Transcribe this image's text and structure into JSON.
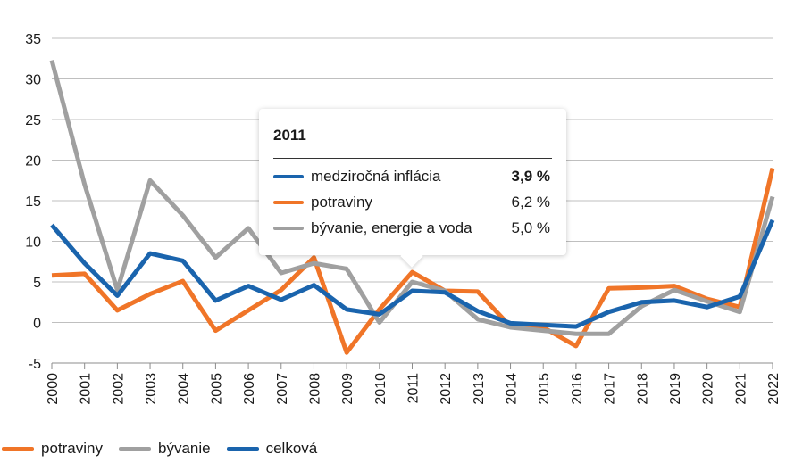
{
  "chart_data": {
    "type": "line",
    "title": "",
    "xlabel": "",
    "ylabel": "",
    "ylim": [
      -5,
      35
    ],
    "yticks": [
      -5,
      0,
      5,
      10,
      15,
      20,
      25,
      30,
      35
    ],
    "grid": true,
    "legend_placement": "bottom-left",
    "categories": [
      "2000",
      "2001",
      "2002",
      "2003",
      "2004",
      "2005",
      "2006",
      "2007",
      "2008",
      "2009",
      "2010",
      "2011",
      "2012",
      "2013",
      "2014",
      "2015",
      "2016",
      "2017",
      "2018",
      "2019",
      "2020",
      "2021",
      "2022"
    ],
    "series": [
      {
        "key": "food",
        "name": "potraviny",
        "color": "#f07528",
        "values": [
          5.8,
          6.0,
          1.5,
          3.5,
          5.1,
          -1.0,
          1.5,
          4.0,
          8.0,
          -3.7,
          1.6,
          6.2,
          3.9,
          3.8,
          -0.5,
          -0.6,
          -2.9,
          4.2,
          4.3,
          4.5,
          2.9,
          1.9,
          19.0
        ]
      },
      {
        "key": "housing",
        "name": "bývanie",
        "color": "#a0a0a0",
        "values": [
          32.3,
          17.0,
          4.0,
          17.5,
          13.2,
          8.0,
          11.6,
          6.1,
          7.3,
          6.6,
          0.0,
          5.0,
          3.9,
          0.4,
          -0.6,
          -1.0,
          -1.4,
          -1.4,
          2.0,
          4.0,
          2.6,
          1.3,
          15.5
        ]
      },
      {
        "key": "total",
        "name": "celková",
        "color": "#1a64ad",
        "values": [
          12.0,
          7.3,
          3.3,
          8.5,
          7.6,
          2.7,
          4.5,
          2.8,
          4.6,
          1.6,
          1.0,
          3.9,
          3.7,
          1.4,
          -0.1,
          -0.3,
          -0.5,
          1.3,
          2.5,
          2.7,
          1.9,
          3.2,
          12.6
        ]
      }
    ],
    "tooltip": {
      "title": "2011",
      "rows": [
        {
          "label": "medziročná inflácia",
          "value": "3,9 %",
          "color": "#1a64ad",
          "bold": true
        },
        {
          "label": "potraviny",
          "value": "6,2 %",
          "color": "#f07528",
          "bold": false
        },
        {
          "label": "bývanie, energie a voda",
          "value": "5,0 %",
          "color": "#a0a0a0",
          "bold": false
        }
      ]
    }
  }
}
